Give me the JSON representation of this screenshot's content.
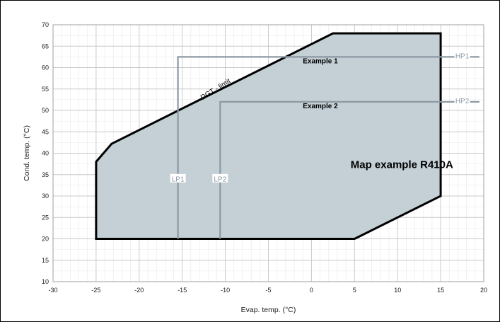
{
  "chart_data": {
    "type": "area",
    "title": "",
    "xlabel": "Evap. temp. (°C)",
    "ylabel": "Cond. temp. (°C)",
    "xlim": [
      -30,
      20
    ],
    "ylim": [
      10,
      70
    ],
    "xticks": [
      -30,
      -25,
      -20,
      -15,
      -10,
      -5,
      0,
      5,
      10,
      15,
      20
    ],
    "yticks": [
      10,
      15,
      20,
      25,
      30,
      35,
      40,
      45,
      50,
      55,
      60,
      65,
      70
    ],
    "grid": true,
    "minor_grid_step_x": 1,
    "minor_grid_step_y": 2.5,
    "envelope": {
      "x": [
        -25,
        -25,
        -23.2,
        2.5,
        15,
        15,
        5,
        -25
      ],
      "y": [
        20,
        38,
        42.2,
        68,
        68,
        30,
        20,
        20
      ]
    },
    "guide_lines": [
      {
        "name": "Example 1",
        "x": [
          -15.5,
          -15.5,
          15,
          19.5
        ],
        "y": [
          20,
          62.5,
          62.5,
          62.5
        ]
      },
      {
        "name": "Example 2",
        "x": [
          -10.6,
          -10.6,
          15,
          19.5
        ],
        "y": [
          20,
          52,
          52,
          52
        ]
      }
    ],
    "annotations": [
      {
        "text": "Map example R410A",
        "x": 10.5,
        "y": 36.5,
        "style": "bold-large"
      },
      {
        "text": "Example 1",
        "x": -1,
        "y": 61,
        "style": "bold"
      },
      {
        "text": "Example 2",
        "x": -1,
        "y": 50.5,
        "style": "bold"
      },
      {
        "text": "DGT - limit",
        "x": -11,
        "y": 54.5,
        "style": "rotated"
      },
      {
        "text": "LP1",
        "x": -15.5,
        "y": 34,
        "style": "grey"
      },
      {
        "text": "LP2",
        "x": -10.6,
        "y": 34,
        "style": "grey"
      },
      {
        "text": "HP1",
        "x": 17.5,
        "y": 62.7,
        "style": "grey"
      },
      {
        "text": "HP2",
        "x": 17.5,
        "y": 52.2,
        "style": "grey"
      }
    ],
    "colors": {
      "envelope_fill": "#c4d0d6",
      "envelope_stroke": "#000000",
      "guide": "#8c99a3",
      "grid_major": "#c7c7c7",
      "grid_minor": "#e8e8e8"
    }
  }
}
